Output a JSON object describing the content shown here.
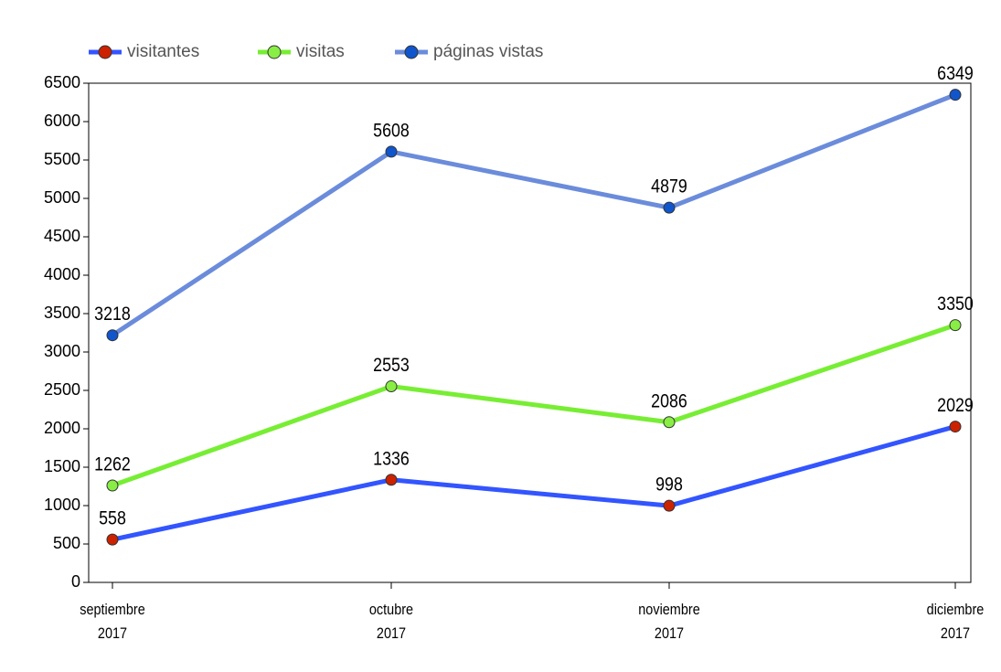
{
  "chart_data": {
    "type": "line",
    "categories": [
      "septiembre 2017",
      "octubre 2017",
      "noviembre 2017",
      "diciembre 2017"
    ],
    "series": [
      {
        "name": "visitantes",
        "color": "#3355ff",
        "marker_color": "#cc2200",
        "values": [
          558,
          1336,
          998,
          2029
        ]
      },
      {
        "name": "visitas",
        "color": "#77ee33",
        "marker_color": "#88ee44",
        "values": [
          1262,
          2553,
          2086,
          3350
        ]
      },
      {
        "name": "páginas vistas",
        "color": "#6b8cdb",
        "marker_color": "#1155cc",
        "values": [
          3218,
          5608,
          4879,
          6349
        ]
      }
    ],
    "ylim": [
      0,
      6500
    ],
    "yticks": [
      0,
      500,
      1000,
      1500,
      2000,
      2500,
      3000,
      3500,
      4000,
      4500,
      5000,
      5500,
      6000,
      6500
    ],
    "grid": false,
    "legend": "top-left"
  }
}
